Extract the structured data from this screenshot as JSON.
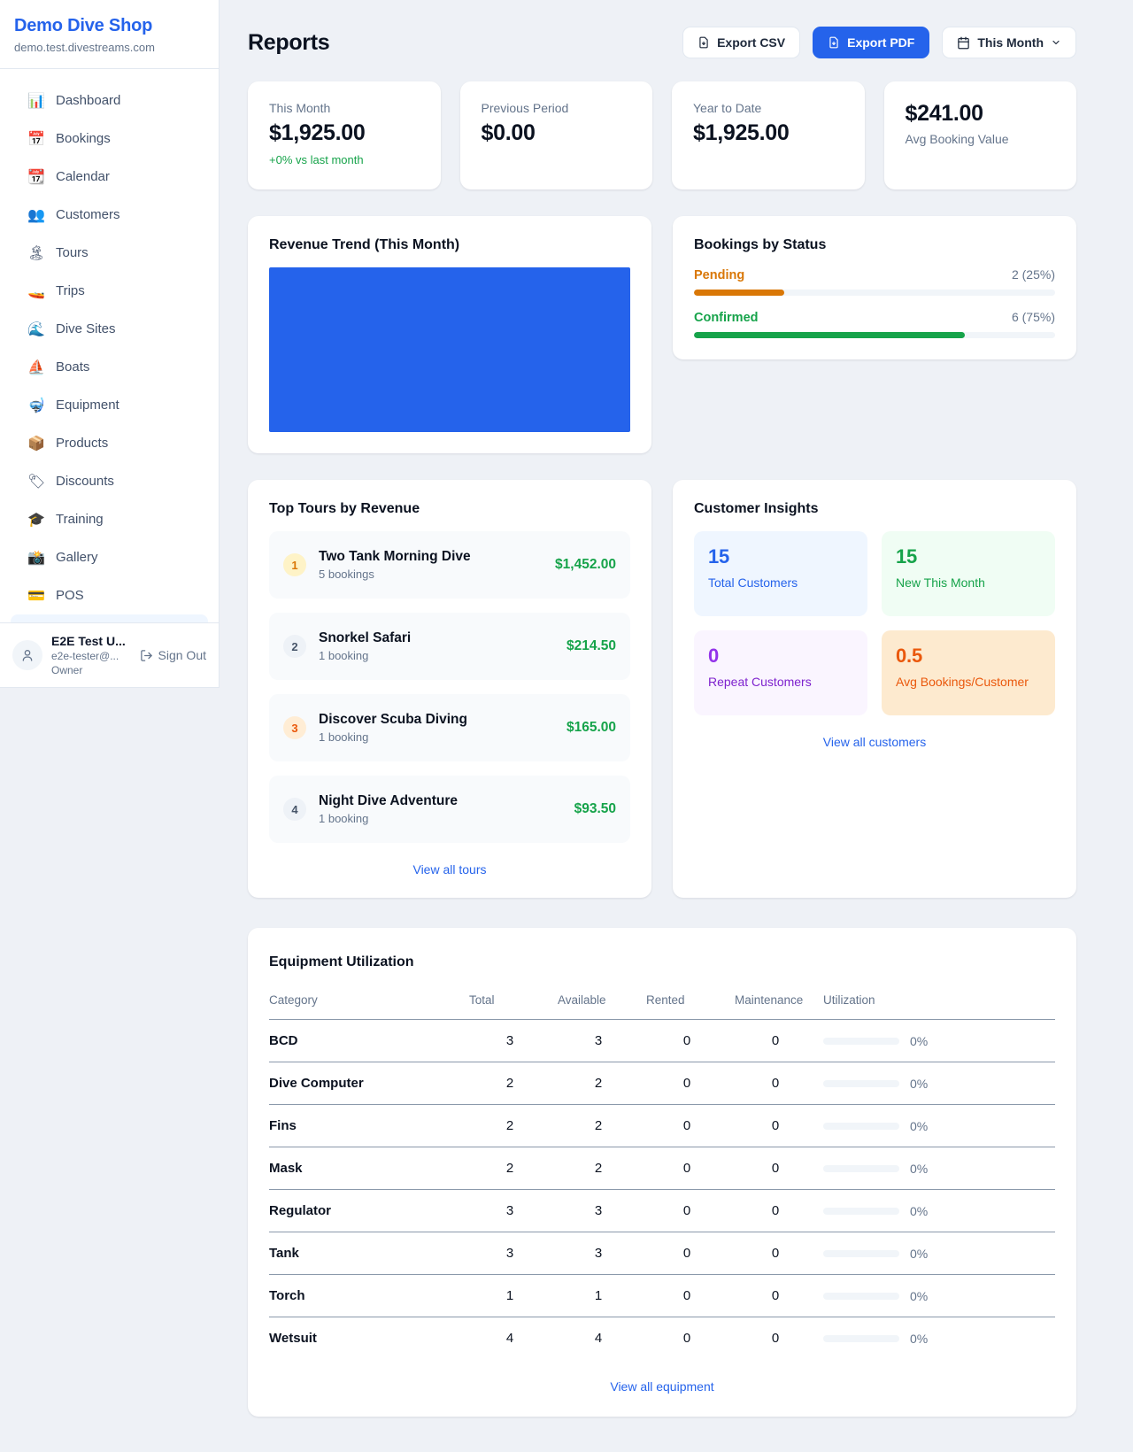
{
  "colors": {
    "accent_blue": "#2563eb",
    "green": "#16a34a",
    "orange_pending": "#d97706",
    "orange_deep": "#ea580c",
    "purple": "#9333ea",
    "page_bg": "#eef1f6"
  },
  "sidebar": {
    "shop_name": "Demo Dive Shop",
    "domain": "demo.test.divestreams.com",
    "items": [
      {
        "icon": "📊",
        "label": "Dashboard"
      },
      {
        "icon": "📅",
        "label": "Bookings"
      },
      {
        "icon": "📆",
        "label": "Calendar"
      },
      {
        "icon": "👥",
        "label": "Customers"
      },
      {
        "icon": "🏝",
        "label": "Tours"
      },
      {
        "icon": "🚤",
        "label": "Trips"
      },
      {
        "icon": "🌊",
        "label": "Dive Sites"
      },
      {
        "icon": "⛵",
        "label": "Boats"
      },
      {
        "icon": "🤿",
        "label": "Equipment"
      },
      {
        "icon": "📦",
        "label": "Products"
      },
      {
        "icon": "🏷",
        "label": "Discounts"
      },
      {
        "icon": "🎓",
        "label": "Training"
      },
      {
        "icon": "📸",
        "label": "Gallery"
      },
      {
        "icon": "💳",
        "label": "POS"
      }
    ],
    "user": {
      "name": "E2E Test U...",
      "email": "e2e-tester@...",
      "role": "Owner",
      "sign_out_label": "Sign Out"
    }
  },
  "header": {
    "title": "Reports",
    "export_csv_label": "Export CSV",
    "export_pdf_label": "Export PDF",
    "period_label": "This Month"
  },
  "stats": [
    {
      "label": "This Month",
      "value": "$1,925.00",
      "sub": "+0% vs last month"
    },
    {
      "label": "Previous Period",
      "value": "$0.00"
    },
    {
      "label": "Year to Date",
      "value": "$1,925.00"
    },
    {
      "label": "Avg Booking Value",
      "value": "$241.00"
    }
  ],
  "revenue_trend": {
    "title": "Revenue Trend (This Month)",
    "bar_width_percent": 100
  },
  "chart_data": [
    {
      "type": "bar",
      "title": "Revenue Trend (This Month)",
      "categories": [
        "This Month"
      ],
      "values": [
        1925.0
      ],
      "xlabel": "",
      "ylabel": "",
      "note": "single solid blue bar filling the entire plot area, no axes or gridlines visible",
      "bar_color": "#2563eb"
    },
    {
      "type": "bar",
      "title": "Bookings by Status",
      "categories": [
        "Pending",
        "Confirmed"
      ],
      "values": [
        2,
        6
      ],
      "percentages": [
        25,
        75
      ],
      "colors": [
        "#d97706",
        "#16a34a"
      ],
      "note": "horizontal progress bars with counts and percentages"
    }
  ],
  "bookings_by_status": {
    "title": "Bookings by Status",
    "rows": [
      {
        "label": "Pending",
        "value": "2 (25%)",
        "percent": 25
      },
      {
        "label": "Confirmed",
        "value": "6 (75%)",
        "percent": 75
      }
    ]
  },
  "top_tours": {
    "title": "Top Tours by Revenue",
    "view_all_label": "View all tours",
    "rows": [
      {
        "rank": "1",
        "name": "Two Tank Morning Dive",
        "bookings": "5 bookings",
        "revenue": "$1,452.00"
      },
      {
        "rank": "2",
        "name": "Snorkel Safari",
        "bookings": "1 booking",
        "revenue": "$214.50"
      },
      {
        "rank": "3",
        "name": "Discover Scuba Diving",
        "bookings": "1 booking",
        "revenue": "$165.00"
      },
      {
        "rank": "4",
        "name": "Night Dive Adventure",
        "bookings": "1 booking",
        "revenue": "$93.50"
      }
    ]
  },
  "customer_insights": {
    "title": "Customer Insights",
    "view_all_label": "View all customers",
    "tiles": [
      {
        "value": "15",
        "label": "Total Customers",
        "theme": "blue"
      },
      {
        "value": "15",
        "label": "New This Month",
        "theme": "green"
      },
      {
        "value": "0",
        "label": "Repeat Customers",
        "theme": "purple"
      },
      {
        "value": "0.5",
        "label": "Avg Bookings/Customer",
        "theme": "orange"
      }
    ]
  },
  "equipment": {
    "title": "Equipment Utilization",
    "view_all_label": "View all equipment",
    "columns": [
      "Category",
      "Total",
      "Available",
      "Rented",
      "Maintenance",
      "Utilization"
    ],
    "rows": [
      {
        "category": "BCD",
        "total": "3",
        "available": "3",
        "rented": "0",
        "maintenance": "0",
        "utilization_percent": 0,
        "utilization_label": "0%"
      },
      {
        "category": "Dive Computer",
        "total": "2",
        "available": "2",
        "rented": "0",
        "maintenance": "0",
        "utilization_percent": 0,
        "utilization_label": "0%"
      },
      {
        "category": "Fins",
        "total": "2",
        "available": "2",
        "rented": "0",
        "maintenance": "0",
        "utilization_percent": 0,
        "utilization_label": "0%"
      },
      {
        "category": "Mask",
        "total": "2",
        "available": "2",
        "rented": "0",
        "maintenance": "0",
        "utilization_percent": 0,
        "utilization_label": "0%"
      },
      {
        "category": "Regulator",
        "total": "3",
        "available": "3",
        "rented": "0",
        "maintenance": "0",
        "utilization_percent": 0,
        "utilization_label": "0%"
      },
      {
        "category": "Tank",
        "total": "3",
        "available": "3",
        "rented": "0",
        "maintenance": "0",
        "utilization_percent": 0,
        "utilization_label": "0%"
      },
      {
        "category": "Torch",
        "total": "1",
        "available": "1",
        "rented": "0",
        "maintenance": "0",
        "utilization_percent": 0,
        "utilization_label": "0%"
      },
      {
        "category": "Wetsuit",
        "total": "4",
        "available": "4",
        "rented": "0",
        "maintenance": "0",
        "utilization_percent": 0,
        "utilization_label": "0%"
      }
    ]
  }
}
